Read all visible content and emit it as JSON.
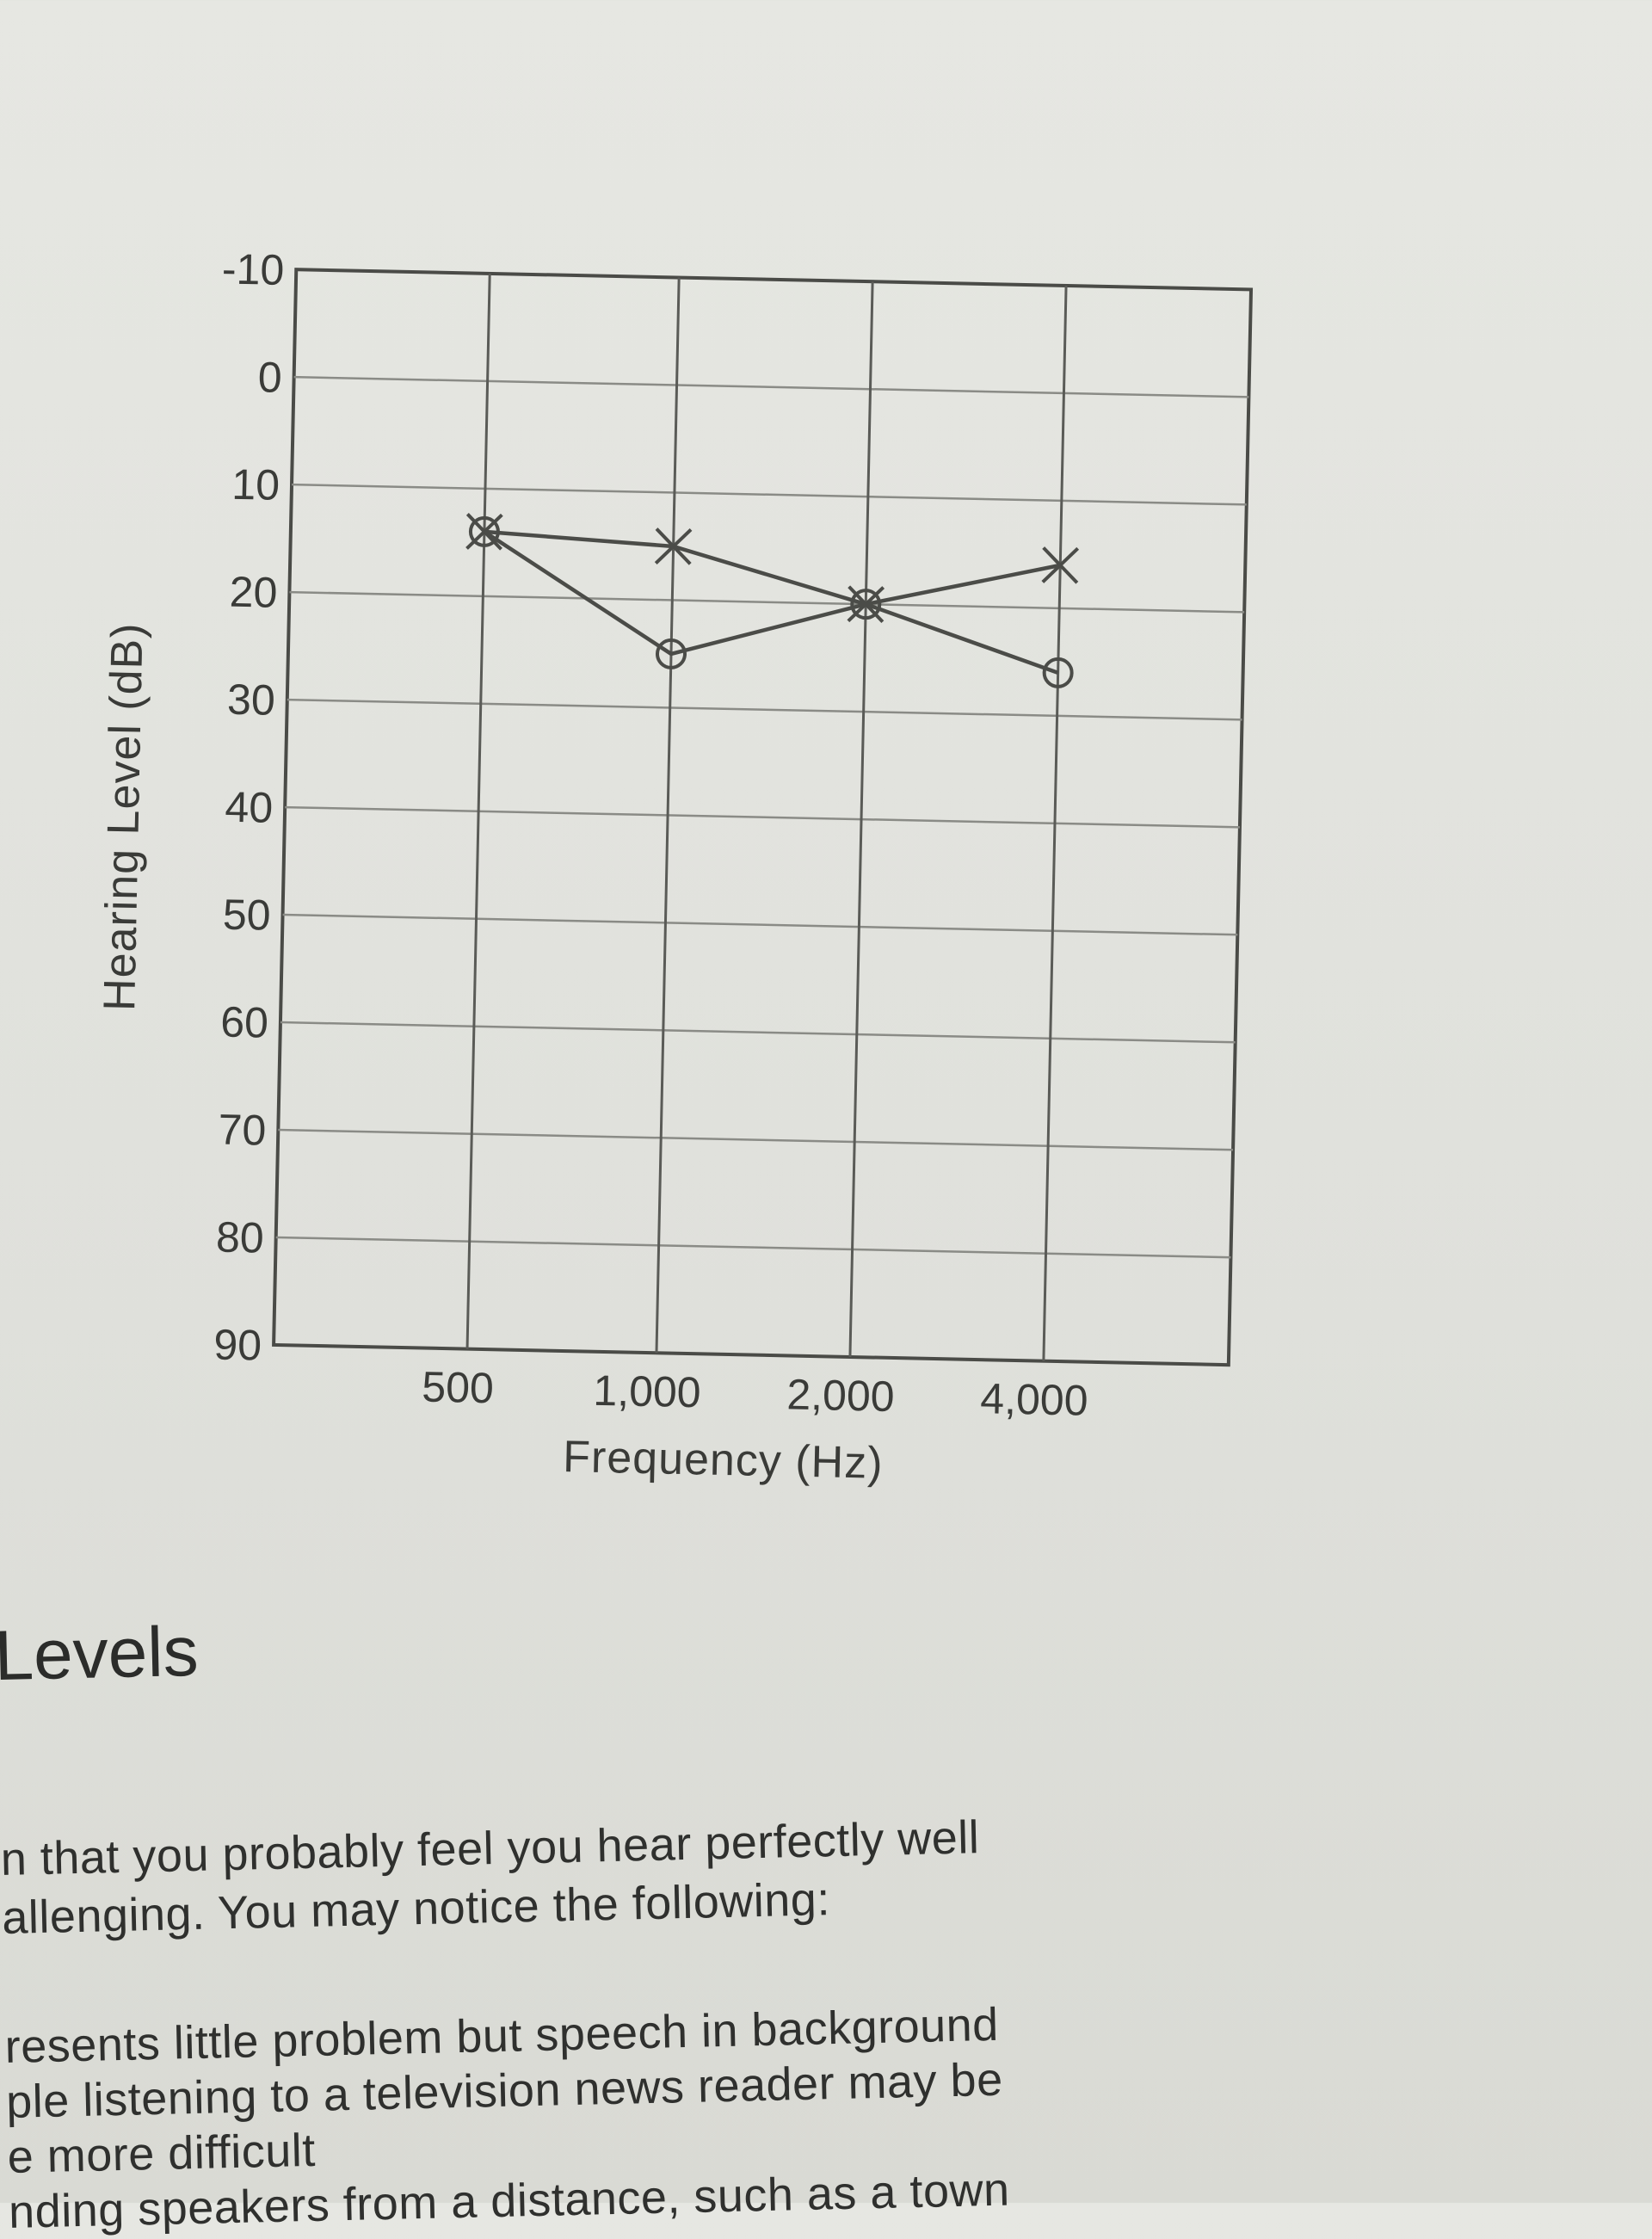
{
  "chart_data": {
    "type": "line",
    "ylabel": "Hearing Level (dB)",
    "xlabel": "Frequency (Hz)",
    "ylim": [
      -10,
      90
    ],
    "y_ticks": [
      "-10",
      "0",
      "10",
      "20",
      "30",
      "40",
      "50",
      "60",
      "70",
      "80",
      "90"
    ],
    "y_inverted": true,
    "categories": [
      "500",
      "1,000",
      "2,000",
      "4,000"
    ],
    "grid": true,
    "series": [
      {
        "marker": "x",
        "values": [
          14,
          15,
          20,
          16
        ]
      },
      {
        "marker": "o",
        "values": [
          14,
          25,
          20,
          26
        ]
      }
    ]
  },
  "text": {
    "heading": "Levels",
    "lines": [
      "n that you probably feel you hear perfectly well",
      "allenging. You may notice the following:",
      "resents little problem but speech in background",
      "ple listening to a television news reader may be",
      "e more difficult",
      "nding speakers from a distance, such as a town"
    ]
  }
}
